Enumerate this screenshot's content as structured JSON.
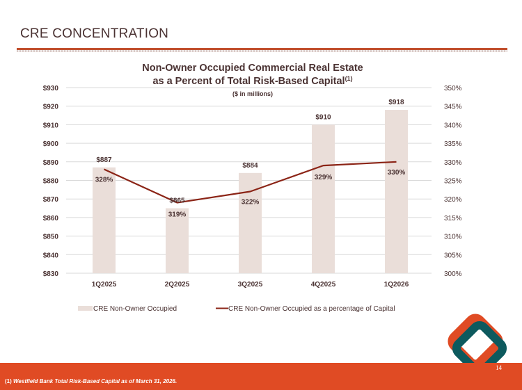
{
  "page": {
    "title": "CRE CONCENTRATION",
    "page_number": "14",
    "footnote_marker": "(1)",
    "footnote_text": "Westfield Bank Total Risk-Based Capital as of March 31, 2026."
  },
  "colors": {
    "accent": "#e04b24",
    "bar": "#eaded9",
    "line": "#8b2416",
    "text": "#4a3232",
    "grid": "#d9d9d9",
    "logo_orange": "#e04b24",
    "logo_teal": "#0d5a5e"
  },
  "chart_data": {
    "type": "bar+line",
    "title_line1": "Non-Owner Occupied Commercial Real Estate",
    "title_line2": "as a Percent of Total Risk-Based Capital",
    "title_superscript": "(1)",
    "subtitle": "($ in millions)",
    "categories": [
      "1Q2025",
      "2Q2025",
      "3Q2025",
      "4Q2025",
      "1Q2026"
    ],
    "series": [
      {
        "name": "CRE Non-Owner Occupied",
        "type": "bar",
        "axis": "left",
        "values": [
          887,
          865,
          884,
          910,
          918
        ],
        "labels": [
          "$887",
          "$865",
          "$884",
          "$910",
          "$918"
        ]
      },
      {
        "name": "CRE Non-Owner Occupied as a percentage of Capital",
        "type": "line",
        "axis": "right",
        "values": [
          328,
          319,
          322,
          329,
          330
        ],
        "labels": [
          "328%",
          "319%",
          "322%",
          "329%",
          "330%"
        ]
      }
    ],
    "y_left": {
      "min": 830,
      "max": 930,
      "step": 10,
      "ticks": [
        "$930",
        "$920",
        "$910",
        "$900",
        "$890",
        "$880",
        "$870",
        "$860",
        "$850",
        "$840",
        "$830"
      ]
    },
    "y_right": {
      "min": 300,
      "max": 350,
      "step": 5,
      "ticks": [
        "350%",
        "345%",
        "340%",
        "335%",
        "330%",
        "325%",
        "320%",
        "315%",
        "310%",
        "305%",
        "300%"
      ]
    },
    "grid": true,
    "legend": {
      "position": "bottom",
      "items": [
        "CRE Non-Owner Occupied",
        "CRE Non-Owner Occupied as a percentage of Capital"
      ]
    }
  }
}
